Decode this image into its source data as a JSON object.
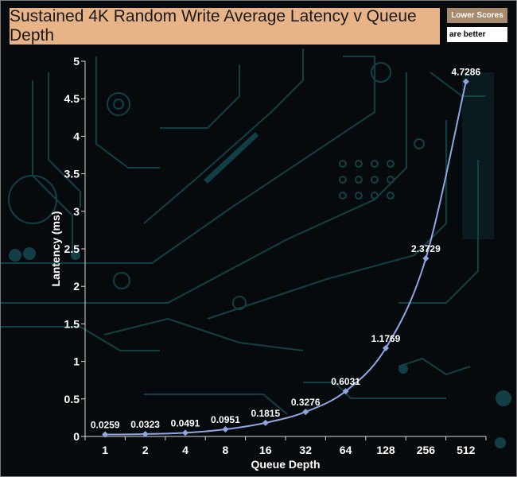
{
  "title": "Sustained 4K Random Write Average Latency v Queue Depth",
  "note": {
    "line1": "Lower Scores",
    "line2": "are better"
  },
  "colors": {
    "line": "#8ea6e2",
    "marker": "#8ea6e2",
    "title_bg": "#e8b487",
    "text": "#ffffff"
  },
  "chart_data": {
    "type": "line",
    "title": "Sustained 4K Random Write Average Latency v Queue Depth",
    "xlabel": "Queue Depth",
    "ylabel": "Lantency (ms)",
    "categories": [
      "1",
      "2",
      "4",
      "8",
      "16",
      "32",
      "64",
      "128",
      "256",
      "512"
    ],
    "values": [
      0.0259,
      0.0323,
      0.0491,
      0.0951,
      0.1815,
      0.3276,
      0.6031,
      1.1769,
      2.3729,
      4.7286
    ],
    "data_labels": [
      "0.0259",
      "0.0323",
      "0.0491",
      "0.0951",
      "0.1815",
      "0.3276",
      "0.6031",
      "1.1769",
      "2.3729",
      "4.7286"
    ],
    "ylim": [
      0,
      5
    ],
    "yticks": [
      "0",
      "0.5",
      "1",
      "1.5",
      "2",
      "2.5",
      "3",
      "3.5",
      "4",
      "4.5",
      "5"
    ],
    "grid": false,
    "legend": "none"
  }
}
